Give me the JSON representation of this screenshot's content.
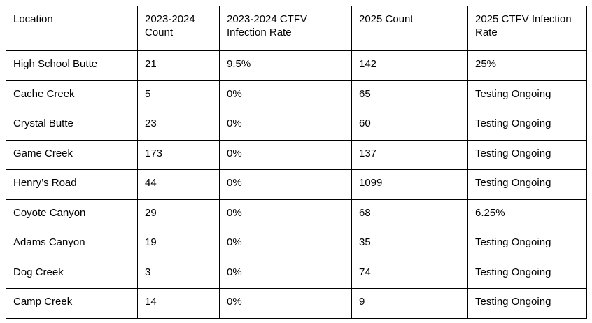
{
  "table": {
    "headers": [
      "Location",
      "2023-2024 Count",
      "2023-2024 CTFV Infection Rate",
      "2025 Count",
      "2025 CTFV Infection Rate"
    ],
    "rows": [
      [
        "High School Butte",
        "21",
        "9.5%",
        "142",
        "25%"
      ],
      [
        "Cache Creek",
        "5",
        "0%",
        "65",
        "Testing Ongoing"
      ],
      [
        "Crystal Butte",
        "23",
        "0%",
        "60",
        "Testing Ongoing"
      ],
      [
        "Game Creek",
        "173",
        "0%",
        "137",
        "Testing Ongoing"
      ],
      [
        "Henry’s Road",
        "44",
        "0%",
        "1099",
        "Testing Ongoing"
      ],
      [
        "Coyote Canyon",
        "29",
        "0%",
        "68",
        "6.25%"
      ],
      [
        "Adams Canyon",
        "19",
        "0%",
        "35",
        "Testing Ongoing"
      ],
      [
        "Dog Creek",
        "3",
        "0%",
        "74",
        "Testing Ongoing"
      ],
      [
        "Camp Creek",
        "14",
        "0%",
        "9",
        "Testing Ongoing"
      ]
    ],
    "colors": {
      "border": "#000000",
      "text": "#000000",
      "background": "#ffffff"
    }
  }
}
